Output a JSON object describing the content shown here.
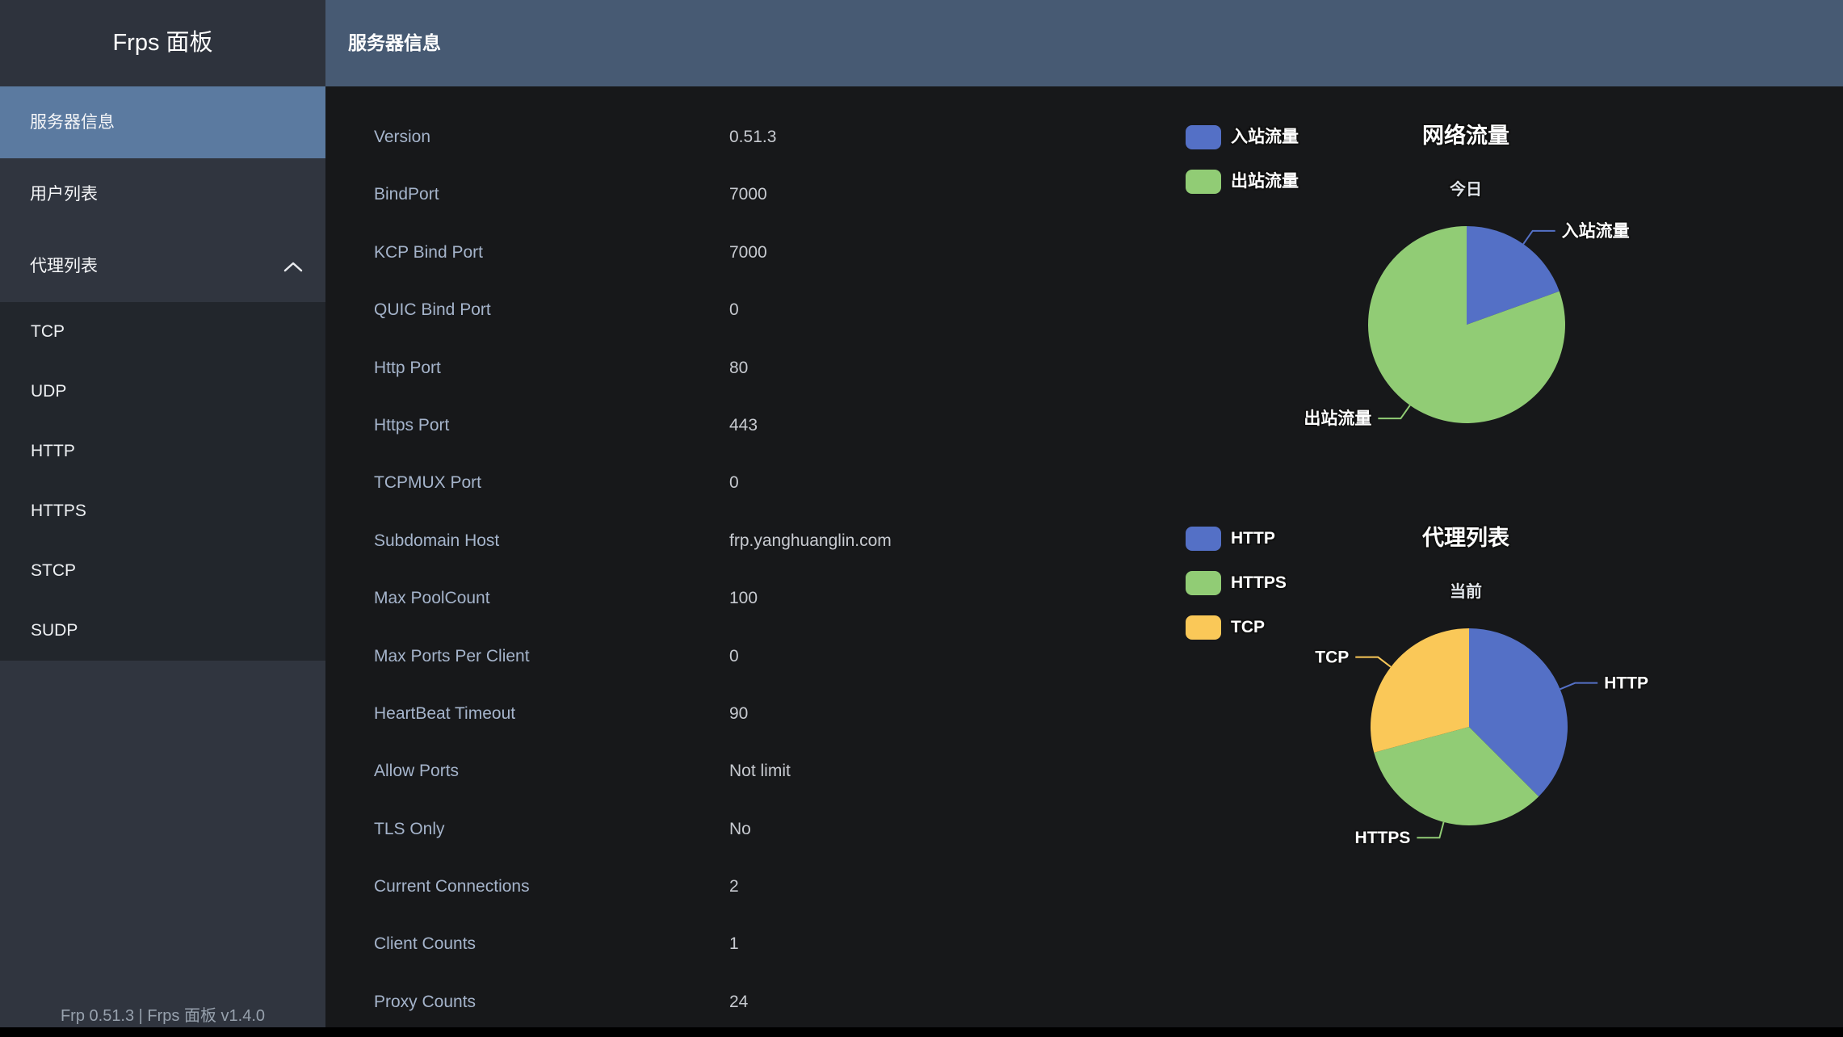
{
  "sidebar": {
    "title": "Frps 面板",
    "items": [
      {
        "label": "服务器信息",
        "active": true
      },
      {
        "label": "用户列表",
        "active": false
      },
      {
        "label": "代理列表",
        "active": false,
        "expanded": true,
        "children": [
          "TCP",
          "UDP",
          "HTTP",
          "HTTPS",
          "STCP",
          "SUDP"
        ]
      }
    ],
    "footer": "Frp 0.51.3 | Frps 面板 v1.4.0"
  },
  "header": {
    "title": "服务器信息"
  },
  "server_info": {
    "rows": [
      {
        "label": "Version",
        "value": "0.51.3"
      },
      {
        "label": "BindPort",
        "value": "7000"
      },
      {
        "label": "KCP Bind Port",
        "value": "7000"
      },
      {
        "label": "QUIC Bind Port",
        "value": "0"
      },
      {
        "label": "Http Port",
        "value": "80"
      },
      {
        "label": "Https Port",
        "value": "443"
      },
      {
        "label": "TCPMUX Port",
        "value": "0"
      },
      {
        "label": "Subdomain Host",
        "value": "frp.yanghuanglin.com"
      },
      {
        "label": "Max PoolCount",
        "value": "100"
      },
      {
        "label": "Max Ports Per Client",
        "value": "0"
      },
      {
        "label": "HeartBeat Timeout",
        "value": "90"
      },
      {
        "label": "Allow Ports",
        "value": "Not limit"
      },
      {
        "label": "TLS Only",
        "value": "No"
      },
      {
        "label": "Current Connections",
        "value": "2"
      },
      {
        "label": "Client Counts",
        "value": "1"
      },
      {
        "label": "Proxy Counts",
        "value": "24"
      }
    ]
  },
  "colors": {
    "header_bg": "#475a73",
    "sidebar_bg": "#30353f",
    "sidebar_submenu_bg": "#22262c",
    "sidebar_active_bg": "#5b7aa0",
    "main_bg": "#17181a",
    "palette": [
      "#5470c6",
      "#91cc75",
      "#fac858"
    ]
  },
  "chart_data": [
    {
      "type": "pie",
      "title": "网络流量",
      "subtitle": "今日",
      "legend_position": "top-left",
      "legend": [
        "入站流量",
        "出站流量"
      ],
      "series": [
        {
          "name": "入站流量",
          "value_pct": 19.5,
          "color": "#5470c6"
        },
        {
          "name": "出站流量",
          "value_pct": 80.5,
          "color": "#91cc75"
        }
      ]
    },
    {
      "type": "pie",
      "title": "代理列表",
      "subtitle": "当前",
      "legend_position": "top-left",
      "legend": [
        "HTTP",
        "HTTPS",
        "TCP"
      ],
      "series": [
        {
          "name": "HTTP",
          "value_pct": 37.5,
          "color": "#5470c6"
        },
        {
          "name": "HTTPS",
          "value_pct": 33.3,
          "color": "#91cc75"
        },
        {
          "name": "TCP",
          "value_pct": 29.2,
          "color": "#fac858"
        }
      ]
    }
  ]
}
